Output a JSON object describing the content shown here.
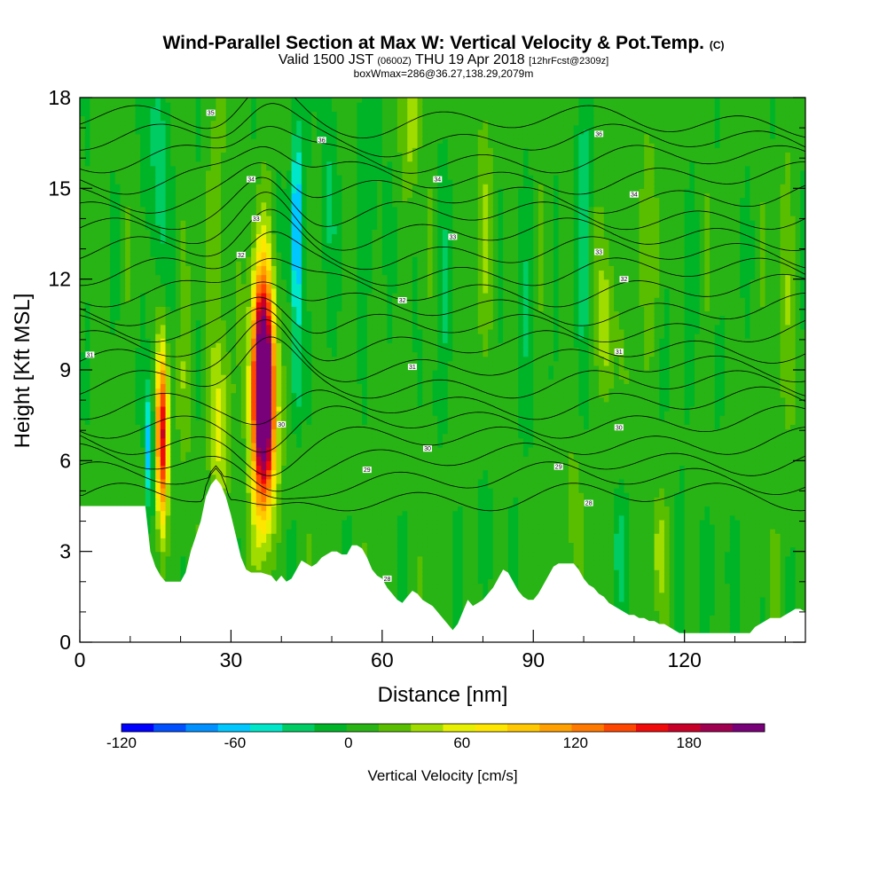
{
  "header": {
    "title_main": "Wind-Parallel Section at Max W: Vertical Velocity & Pot.Temp.",
    "title_mark": "(C)",
    "valid_a": "Valid 1500 JST",
    "valid_zulu": "(0600Z)",
    "valid_b": "THU 19 Apr 2018",
    "valid_fcst": "[12hrFcst@2309z]",
    "box_info": "boxWmax=286@36.27,138.29,2079m"
  },
  "chart_data": {
    "type": "heatmap",
    "xlabel": "Distance [nm]",
    "ylabel": "Height [Kft MSL]",
    "xlim": [
      0,
      144
    ],
    "ylim": [
      0,
      18
    ],
    "x_major_ticks": [
      0,
      30,
      60,
      90,
      120
    ],
    "x_minor_ticks": [
      10,
      20,
      40,
      50,
      70,
      80,
      100,
      110,
      130,
      140
    ],
    "y_major_ticks": [
      0,
      3,
      6,
      9,
      12,
      15,
      18
    ],
    "y_minor_ticks": [
      1,
      2,
      4,
      5,
      7,
      8,
      10,
      11,
      13,
      14,
      16,
      17
    ],
    "terrain_kft": [
      [
        0,
        4.5
      ],
      [
        13,
        4.5
      ],
      [
        14,
        3
      ],
      [
        15,
        2.5
      ],
      [
        16,
        2.2
      ],
      [
        17,
        2
      ],
      [
        20,
        2
      ],
      [
        21,
        2.3
      ],
      [
        22,
        3
      ],
      [
        23,
        3.5
      ],
      [
        24,
        4
      ],
      [
        25,
        4.8
      ],
      [
        26,
        5.2
      ],
      [
        27,
        5.4
      ],
      [
        28,
        5.2
      ],
      [
        29,
        4.8
      ],
      [
        30,
        4.2
      ],
      [
        31,
        3.5
      ],
      [
        32,
        2.8
      ],
      [
        33,
        2.4
      ],
      [
        34,
        2.3
      ],
      [
        36,
        2.3
      ],
      [
        38,
        2.2
      ],
      [
        39,
        2
      ],
      [
        40,
        2.2
      ],
      [
        41,
        2
      ],
      [
        42,
        2.1
      ],
      [
        43,
        2.4
      ],
      [
        44,
        2.7
      ],
      [
        45,
        2.6
      ],
      [
        46,
        2.5
      ],
      [
        47,
        2.6
      ],
      [
        48,
        2.8
      ],
      [
        49,
        2.9
      ],
      [
        50,
        3
      ],
      [
        51,
        3
      ],
      [
        52,
        2.9
      ],
      [
        53,
        2.9
      ],
      [
        54,
        3.2
      ],
      [
        55,
        3.2
      ],
      [
        56,
        3.1
      ],
      [
        57,
        2.8
      ],
      [
        58,
        2.4
      ],
      [
        59,
        2.2
      ],
      [
        60,
        2.1
      ],
      [
        61,
        1.8
      ],
      [
        62,
        1.6
      ],
      [
        63,
        1.4
      ],
      [
        64,
        1.3
      ],
      [
        65,
        1.5
      ],
      [
        66,
        1.7
      ],
      [
        67,
        1.6
      ],
      [
        68,
        1.4
      ],
      [
        69,
        1.3
      ],
      [
        70,
        1.2
      ],
      [
        71,
        1
      ],
      [
        72,
        0.8
      ],
      [
        73,
        0.6
      ],
      [
        74,
        0.4
      ],
      [
        75,
        0.6
      ],
      [
        76,
        1
      ],
      [
        77,
        1.4
      ],
      [
        78,
        1.2
      ],
      [
        79,
        1.3
      ],
      [
        80,
        1.4
      ],
      [
        81,
        1.6
      ],
      [
        82,
        1.8
      ],
      [
        83,
        2.1
      ],
      [
        84,
        2.4
      ],
      [
        85,
        2.3
      ],
      [
        86,
        2
      ],
      [
        87,
        1.7
      ],
      [
        88,
        1.5
      ],
      [
        89,
        1.4
      ],
      [
        90,
        1.4
      ],
      [
        91,
        1.6
      ],
      [
        92,
        1.9
      ],
      [
        93,
        2.2
      ],
      [
        94,
        2.5
      ],
      [
        95,
        2.6
      ],
      [
        98,
        2.6
      ],
      [
        99,
        2.4
      ],
      [
        100,
        2.1
      ],
      [
        101,
        1.9
      ],
      [
        102,
        1.8
      ],
      [
        103,
        1.6
      ],
      [
        104,
        1.5
      ],
      [
        105,
        1.3
      ],
      [
        106,
        1.2
      ],
      [
        107,
        1.1
      ],
      [
        108,
        1
      ],
      [
        109,
        0.9
      ],
      [
        110,
        0.9
      ],
      [
        111,
        0.8
      ],
      [
        112,
        0.8
      ],
      [
        113,
        0.7
      ],
      [
        114,
        0.7
      ],
      [
        115,
        0.6
      ],
      [
        116,
        0.6
      ],
      [
        117,
        0.5
      ],
      [
        118,
        0.4
      ],
      [
        119,
        0.3
      ],
      [
        124,
        0.3
      ],
      [
        130,
        0.3
      ],
      [
        133,
        0.3
      ],
      [
        134,
        0.5
      ],
      [
        135,
        0.6
      ],
      [
        136,
        0.7
      ],
      [
        137,
        0.8
      ],
      [
        138,
        0.8
      ],
      [
        139,
        0.8
      ],
      [
        140,
        0.9
      ],
      [
        141,
        1
      ],
      [
        142,
        1.1
      ],
      [
        143,
        1.1
      ],
      [
        144,
        1
      ]
    ],
    "isentrope_labels": [
      {
        "x": 2,
        "y": 9.5,
        "text": "31"
      },
      {
        "x": 26,
        "y": 17.5,
        "text": "35"
      },
      {
        "x": 34,
        "y": 15.3,
        "text": "34"
      },
      {
        "x": 35,
        "y": 14,
        "text": "33"
      },
      {
        "x": 32,
        "y": 12.8,
        "text": "32"
      },
      {
        "x": 40,
        "y": 7.2,
        "text": "30"
      },
      {
        "x": 48,
        "y": 16.6,
        "text": "36"
      },
      {
        "x": 57,
        "y": 5.7,
        "text": "29"
      },
      {
        "x": 64,
        "y": 11.3,
        "text": "32"
      },
      {
        "x": 66,
        "y": 9.1,
        "text": "31"
      },
      {
        "x": 69,
        "y": 6.4,
        "text": "30"
      },
      {
        "x": 61,
        "y": 2.1,
        "text": "28"
      },
      {
        "x": 71,
        "y": 15.3,
        "text": "34"
      },
      {
        "x": 74,
        "y": 13.4,
        "text": "33"
      },
      {
        "x": 95,
        "y": 5.8,
        "text": "29"
      },
      {
        "x": 101,
        "y": 4.6,
        "text": "28"
      },
      {
        "x": 103,
        "y": 16.8,
        "text": "36"
      },
      {
        "x": 103,
        "y": 12.9,
        "text": "33"
      },
      {
        "x": 107,
        "y": 9.6,
        "text": "31"
      },
      {
        "x": 107,
        "y": 7.1,
        "text": "30"
      },
      {
        "x": 108,
        "y": 12,
        "text": "32"
      },
      {
        "x": 110,
        "y": 14.8,
        "text": "34"
      }
    ],
    "velocity_features_cm_s": [
      {
        "x": 36.5,
        "y": 8,
        "sx": 1.6,
        "sy": 2.6,
        "peak": 230
      },
      {
        "x": 36,
        "y": 9.2,
        "sx": 1.4,
        "sy": 2.5,
        "peak": 80
      },
      {
        "x": 16.3,
        "y": 6.8,
        "sx": 0.8,
        "sy": 2.1,
        "peak": 165
      },
      {
        "x": 13.8,
        "y": 6.4,
        "sx": 0.5,
        "sy": 1.5,
        "peak": -75
      },
      {
        "x": 43,
        "y": 13.5,
        "sx": 0.8,
        "sy": 2.5,
        "peak": -90
      },
      {
        "x": 43,
        "y": 8.6,
        "sx": 0.6,
        "sy": 1.2,
        "peak": -35
      },
      {
        "x": 104.5,
        "y": 10.4,
        "sx": 1.2,
        "sy": 1.8,
        "peak": 45
      },
      {
        "x": 66,
        "y": 17.2,
        "sx": 1.2,
        "sy": 1.6,
        "peak": 40
      },
      {
        "x": 15.5,
        "y": 16,
        "sx": 1.3,
        "sy": 3,
        "peak": -40
      },
      {
        "x": 27.5,
        "y": 7,
        "sx": 1.3,
        "sy": 2.3,
        "peak": 45
      },
      {
        "x": 21,
        "y": 8.5,
        "sx": 1,
        "sy": 2,
        "peak": 25
      },
      {
        "x": 28,
        "y": 14,
        "sx": 1.4,
        "sy": 3,
        "peak": 20
      },
      {
        "x": 49,
        "y": 15,
        "sx": 1.2,
        "sy": 3,
        "peak": -25
      },
      {
        "x": 58,
        "y": 15,
        "sx": 1.3,
        "sy": 3,
        "peak": -25
      },
      {
        "x": 72,
        "y": 11,
        "sx": 1.2,
        "sy": 3,
        "peak": -20
      },
      {
        "x": 80,
        "y": 14,
        "sx": 1.5,
        "sy": 3,
        "peak": 20
      },
      {
        "x": 88,
        "y": 10,
        "sx": 1.4,
        "sy": 3,
        "peak": -20
      },
      {
        "x": 100,
        "y": 14,
        "sx": 1.2,
        "sy": 4,
        "peak": -30
      },
      {
        "x": 112,
        "y": 13,
        "sx": 1.5,
        "sy": 3,
        "peak": 20
      },
      {
        "x": 120,
        "y": 9,
        "sx": 1.5,
        "sy": 3,
        "peak": -15
      },
      {
        "x": 115,
        "y": 3,
        "sx": 1,
        "sy": 1.3,
        "peak": 30
      },
      {
        "x": 107,
        "y": 3,
        "sx": 1,
        "sy": 1.3,
        "peak": -30
      },
      {
        "x": 98,
        "y": 4,
        "sx": 1.2,
        "sy": 1.5,
        "peak": 25
      },
      {
        "x": 126,
        "y": 2.5,
        "sx": 2,
        "sy": 1.3,
        "peak": -18
      },
      {
        "x": 80,
        "y": 3.5,
        "sx": 2,
        "sy": 1.3,
        "peak": -18
      },
      {
        "x": 140,
        "y": 11,
        "sx": 1.5,
        "sy": 3,
        "peak": 20
      }
    ]
  },
  "colorbar": {
    "colors": [
      "#0000ff",
      "#0050ff",
      "#0090ff",
      "#00c8ff",
      "#00e6c8",
      "#00cc64",
      "#00b428",
      "#28b414",
      "#5abe00",
      "#a0dc00",
      "#e6f000",
      "#ffe600",
      "#ffc800",
      "#ffa000",
      "#ff7800",
      "#ff4600",
      "#f00a0a",
      "#c80028",
      "#a00050",
      "#780078"
    ],
    "min": -120,
    "max": 220,
    "tick_values": [
      -120,
      -60,
      0,
      60,
      120,
      180
    ],
    "tick_labels": [
      "-120",
      "-60",
      "0",
      "60",
      "120",
      "180"
    ],
    "title": "Vertical Velocity [cm/s]"
  },
  "colors": {
    "terrain_fill": "#ffffff",
    "contour_line": "#000000"
  }
}
